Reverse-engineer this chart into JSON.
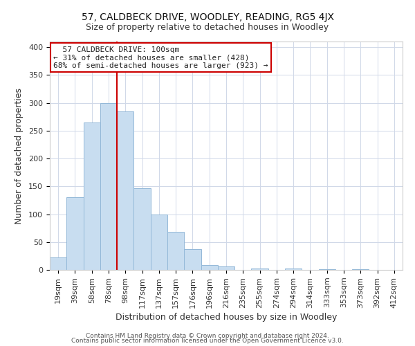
{
  "title": "57, CALDBECK DRIVE, WOODLEY, READING, RG5 4JX",
  "subtitle": "Size of property relative to detached houses in Woodley",
  "xlabel": "Distribution of detached houses by size in Woodley",
  "ylabel": "Number of detached properties",
  "bar_labels": [
    "19sqm",
    "39sqm",
    "58sqm",
    "78sqm",
    "98sqm",
    "117sqm",
    "137sqm",
    "157sqm",
    "176sqm",
    "196sqm",
    "216sqm",
    "235sqm",
    "255sqm",
    "274sqm",
    "294sqm",
    "314sqm",
    "333sqm",
    "353sqm",
    "373sqm",
    "392sqm",
    "412sqm"
  ],
  "bar_values": [
    22,
    130,
    265,
    300,
    285,
    147,
    100,
    68,
    37,
    9,
    6,
    0,
    3,
    0,
    2,
    0,
    1,
    0,
    1,
    0,
    0
  ],
  "bar_color": "#c8ddf0",
  "bar_edge_color": "#93b8d8",
  "vline_color": "#cc0000",
  "vline_index": 3.5,
  "ylim": [
    0,
    410
  ],
  "yticks": [
    0,
    50,
    100,
    150,
    200,
    250,
    300,
    350,
    400
  ],
  "annotation_title": "57 CALDBECK DRIVE: 100sqm",
  "annotation_line1": "← 31% of detached houses are smaller (428)",
  "annotation_line2": "68% of semi-detached houses are larger (923) →",
  "annotation_box_color": "#ffffff",
  "annotation_box_edge": "#cc0000",
  "footer1": "Contains HM Land Registry data © Crown copyright and database right 2024.",
  "footer2": "Contains public sector information licensed under the Open Government Licence v3.0.",
  "background_color": "#ffffff",
  "grid_color": "#d0d8e8",
  "title_fontsize": 10,
  "subtitle_fontsize": 9,
  "axis_label_fontsize": 9,
  "tick_fontsize": 8,
  "annotation_fontsize": 8,
  "footer_fontsize": 6.5
}
